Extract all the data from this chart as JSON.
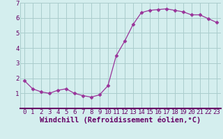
{
  "x": [
    0,
    1,
    2,
    3,
    4,
    5,
    6,
    7,
    8,
    9,
    10,
    11,
    12,
    13,
    14,
    15,
    16,
    17,
    18,
    19,
    20,
    21,
    22,
    23
  ],
  "y": [
    1.85,
    1.3,
    1.1,
    1.0,
    1.2,
    1.3,
    1.0,
    0.85,
    0.75,
    0.9,
    1.5,
    3.5,
    4.45,
    5.55,
    6.35,
    6.5,
    6.55,
    6.6,
    6.5,
    6.4,
    6.2,
    6.2,
    5.95,
    5.7
  ],
  "line_color": "#993399",
  "marker": "D",
  "marker_size": 2.5,
  "bg_color": "#d4eeee",
  "grid_color": "#aacccc",
  "xlabel": "Windchill (Refroidissement éolien,°C)",
  "xlabel_fontsize": 7.5,
  "tick_fontsize": 6.5,
  "ylim": [
    0,
    7
  ],
  "xlim": [
    -0.5,
    23.5
  ],
  "yticks": [
    1,
    2,
    3,
    4,
    5,
    6,
    7
  ],
  "xticks": [
    0,
    1,
    2,
    3,
    4,
    5,
    6,
    7,
    8,
    9,
    10,
    11,
    12,
    13,
    14,
    15,
    16,
    17,
    18,
    19,
    20,
    21,
    22,
    23
  ]
}
